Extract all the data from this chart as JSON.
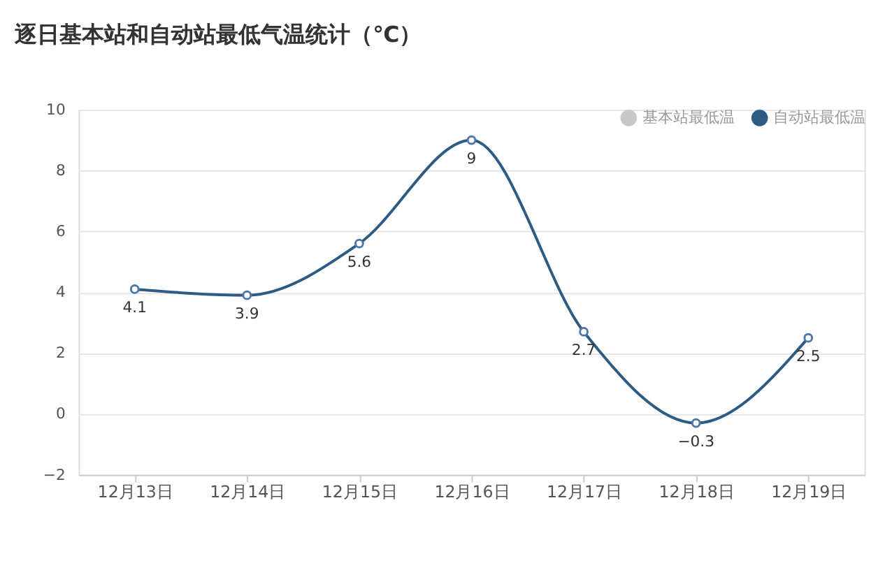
{
  "chart_data": {
    "type": "line",
    "title": "逐日基本站和自动站最低气温统计（℃）",
    "categories": [
      "12月13日",
      "12月14日",
      "12月15日",
      "12月16日",
      "12月17日",
      "12月18日",
      "12月19日"
    ],
    "series": [
      {
        "name": "基本站最低温",
        "color": "#c8c8c8",
        "values": [
          null,
          null,
          null,
          null,
          null,
          null,
          null
        ]
      },
      {
        "name": "自动站最低温",
        "color": "#2c5b84",
        "values": [
          4.1,
          3.9,
          5.6,
          9,
          2.7,
          -0.3,
          2.5
        ]
      }
    ],
    "ylim": [
      -2,
      10
    ],
    "yticks": [
      -2,
      0,
      2,
      4,
      6,
      8,
      10
    ],
    "grid": "y",
    "legend": "top right",
    "marker": "circle",
    "line_style": "solid",
    "data_labels": true
  }
}
